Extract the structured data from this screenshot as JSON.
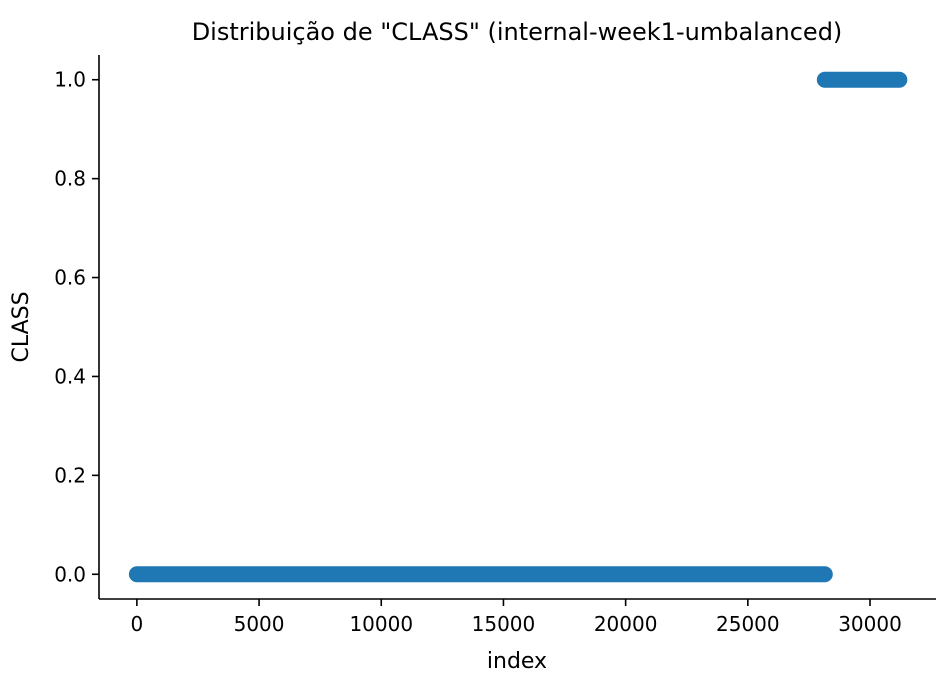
{
  "chart_data": {
    "type": "scatter",
    "title": "Distribuição de \"CLASS\" (internal-week1-umbalanced)",
    "xlabel": "index",
    "ylabel": "CLASS",
    "xlim": [
      -1550,
      32700
    ],
    "ylim": [
      -0.05,
      1.05
    ],
    "x_ticks": [
      0,
      5000,
      10000,
      15000,
      20000,
      25000,
      30000
    ],
    "x_tick_labels": [
      "0",
      "5000",
      "10000",
      "15000",
      "20000",
      "25000",
      "30000"
    ],
    "y_ticks": [
      0.0,
      0.2,
      0.4,
      0.6,
      0.8,
      1.0
    ],
    "y_tick_labels": [
      "0.0",
      "0.2",
      "0.4",
      "0.6",
      "0.8",
      "1.0"
    ],
    "grid": false,
    "marker_color": "#1f77b4",
    "series": [
      {
        "class_value": 0,
        "x_start": 0,
        "x_end": 28150
      },
      {
        "class_value": 1,
        "x_start": 28150,
        "x_end": 31200
      }
    ]
  }
}
